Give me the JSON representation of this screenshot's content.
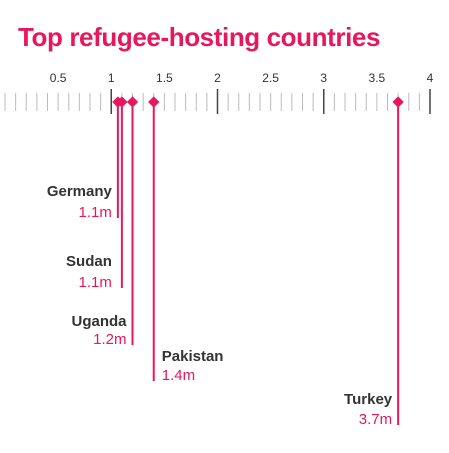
{
  "colors": {
    "accent": "#e8175d",
    "text": "#333333",
    "tick": "#bbbbbb",
    "major_tick": "#444444"
  },
  "chart_data": {
    "type": "scatter",
    "title": "Top refugee-hosting countries",
    "xlim": [
      0,
      4
    ],
    "tick_labels": [
      "0.5",
      "1",
      "1.5",
      "2",
      "2.5",
      "3",
      "3.5",
      "4"
    ],
    "tick_values": [
      0.5,
      1,
      1.5,
      2,
      2.5,
      3,
      3.5,
      4
    ],
    "series": [
      {
        "country": "Germany",
        "value": 1.1,
        "label": "1.1m"
      },
      {
        "country": "Sudan",
        "value": 1.1,
        "label": "1.1m"
      },
      {
        "country": "Uganda",
        "value": 1.2,
        "label": "1.2m"
      },
      {
        "country": "Pakistan",
        "value": 1.4,
        "label": "1.4m"
      },
      {
        "country": "Turkey",
        "value": 3.7,
        "label": "3.7m"
      }
    ]
  }
}
